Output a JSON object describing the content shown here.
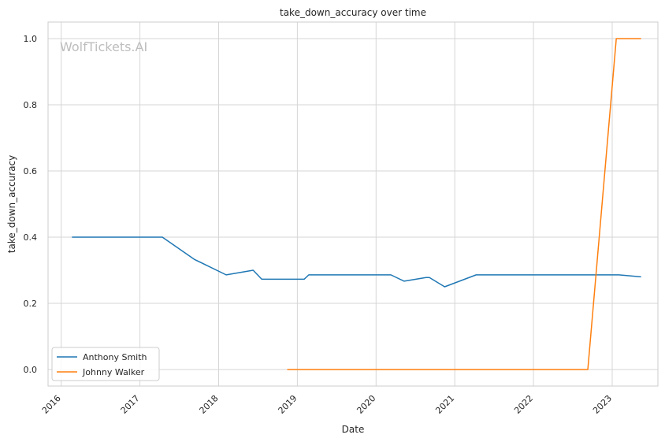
{
  "chart_data": {
    "type": "line",
    "title": "take_down_accuracy over time",
    "xlabel": "Date",
    "ylabel": "take_down_accuracy",
    "watermark": "WolfTickets.AI",
    "xlim": [
      "2015-11-01",
      "2023-08-01"
    ],
    "ylim": [
      -0.05,
      1.05
    ],
    "x_ticks": [
      "2016",
      "2017",
      "2018",
      "2019",
      "2020",
      "2021",
      "2022",
      "2023"
    ],
    "y_ticks": [
      "0.0",
      "0.2",
      "0.4",
      "0.6",
      "0.8",
      "1.0"
    ],
    "grid": true,
    "legend_position": "lower-left",
    "series": [
      {
        "name": "Anthony Smith",
        "color": "#1f77b4",
        "points": [
          [
            "2016-02-20",
            0.4
          ],
          [
            "2017-04-15",
            0.4
          ],
          [
            "2017-09-10",
            0.333
          ],
          [
            "2018-02-05",
            0.286
          ],
          [
            "2018-06-10",
            0.3
          ],
          [
            "2018-07-20",
            0.273
          ],
          [
            "2019-02-02",
            0.273
          ],
          [
            "2019-02-23",
            0.286
          ],
          [
            "2020-03-10",
            0.286
          ],
          [
            "2020-05-10",
            0.267
          ],
          [
            "2020-08-20",
            0.278
          ],
          [
            "2020-09-05",
            0.278
          ],
          [
            "2020-11-15",
            0.25
          ],
          [
            "2021-04-10",
            0.286
          ],
          [
            "2023-02-01",
            0.286
          ],
          [
            "2023-05-15",
            0.28
          ]
        ]
      },
      {
        "name": "Johnny Walker",
        "color": "#ff7f0e",
        "points": [
          [
            "2018-11-15",
            0.0
          ],
          [
            "2022-09-10",
            0.0
          ],
          [
            "2023-01-20",
            1.0
          ],
          [
            "2023-05-15",
            1.0
          ]
        ]
      }
    ]
  }
}
